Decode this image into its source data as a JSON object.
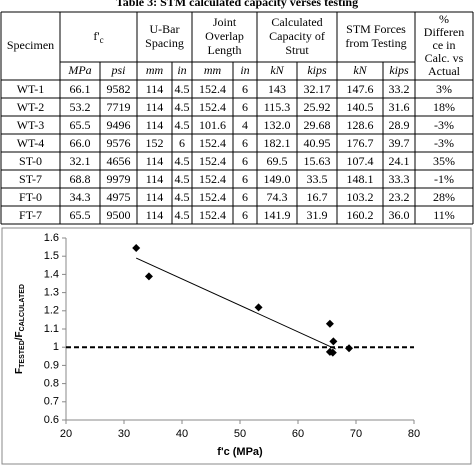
{
  "table": {
    "title": "Table 3: STM calculated capacity verses testing",
    "headers": [
      {
        "lines": [
          "Specimen"
        ]
      },
      {
        "main": "f'",
        "sub": "c"
      },
      {
        "lines": [
          "U-Bar",
          "Spacing"
        ]
      },
      {
        "lines": [
          "Joint",
          "Overlap",
          "Length"
        ]
      },
      {
        "lines": [
          "Calculated",
          "Capacity of",
          "Strut"
        ]
      },
      {
        "lines": [
          "STM Forces",
          "from Testing"
        ]
      },
      {
        "lines": [
          "%",
          "Differen",
          "ce in",
          "Calc. vs",
          "Actual"
        ]
      }
    ],
    "units": [
      "MPa",
      "psi",
      "mm",
      "in",
      "mm",
      "in",
      "kN",
      "kips",
      "kN",
      "kips"
    ],
    "rows": [
      [
        "WT-1",
        "66.1",
        "9582",
        "114",
        "4.5",
        "152.4",
        "6",
        "143",
        "32.17",
        "147.6",
        "33.2",
        "3%"
      ],
      [
        "WT-2",
        "53.2",
        "7719",
        "114",
        "4.5",
        "152.4",
        "6",
        "115.3",
        "25.92",
        "140.5",
        "31.6",
        "18%"
      ],
      [
        "WT-3",
        "65.5",
        "9496",
        "114",
        "4.5",
        "101.6",
        "4",
        "132.0",
        "29.68",
        "128.6",
        "28.9",
        "-3%"
      ],
      [
        "WT-4",
        "66.0",
        "9576",
        "152",
        "6",
        "152.4",
        "6",
        "182.1",
        "40.95",
        "176.7",
        "39.7",
        "-3%"
      ],
      [
        "ST-0",
        "32.1",
        "4656",
        "114",
        "4.5",
        "152.4",
        "6",
        "69.5",
        "15.63",
        "107.4",
        "24.1",
        "35%"
      ],
      [
        "ST-7",
        "68.8",
        "9979",
        "114",
        "4.5",
        "152.4",
        "6",
        "149.0",
        "33.5",
        "148.1",
        "33.3",
        "-1%"
      ],
      [
        "FT-0",
        "34.3",
        "4975",
        "114",
        "4.5",
        "152.4",
        "6",
        "74.3",
        "16.7",
        "103.2",
        "23.2",
        "28%"
      ],
      [
        "FT-7",
        "65.5",
        "9500",
        "114",
        "4.5",
        "152.4",
        "6",
        "141.9",
        "31.9",
        "160.2",
        "36.0",
        "11%"
      ]
    ]
  },
  "chart_data": {
    "type": "scatter",
    "x_label": "f'c (MPa)",
    "y_label": [
      "F",
      "TESTED",
      "/F",
      "CALCULATED"
    ],
    "x": [
      66.1,
      53.2,
      65.5,
      66.0,
      32.1,
      68.8,
      34.3,
      65.5
    ],
    "values": [
      1.032,
      1.219,
      0.974,
      0.97,
      1.545,
      0.994,
      1.389,
      1.129
    ],
    "color": "#000000",
    "trend_line": {
      "x": [
        32.1,
        66.5
      ],
      "y": [
        1.49,
        0.99
      ]
    },
    "reference_line": 1,
    "xlim": [
      20,
      80
    ],
    "xticks": [
      20,
      30,
      40,
      50,
      60,
      70,
      80
    ],
    "ylim": [
      0.6,
      1.6
    ],
    "yticks": [
      0.6,
      0.7,
      0.8,
      0.9,
      1,
      1.1,
      1.2,
      1.3,
      1.4,
      1.5,
      1.6
    ],
    "grid": false
  }
}
